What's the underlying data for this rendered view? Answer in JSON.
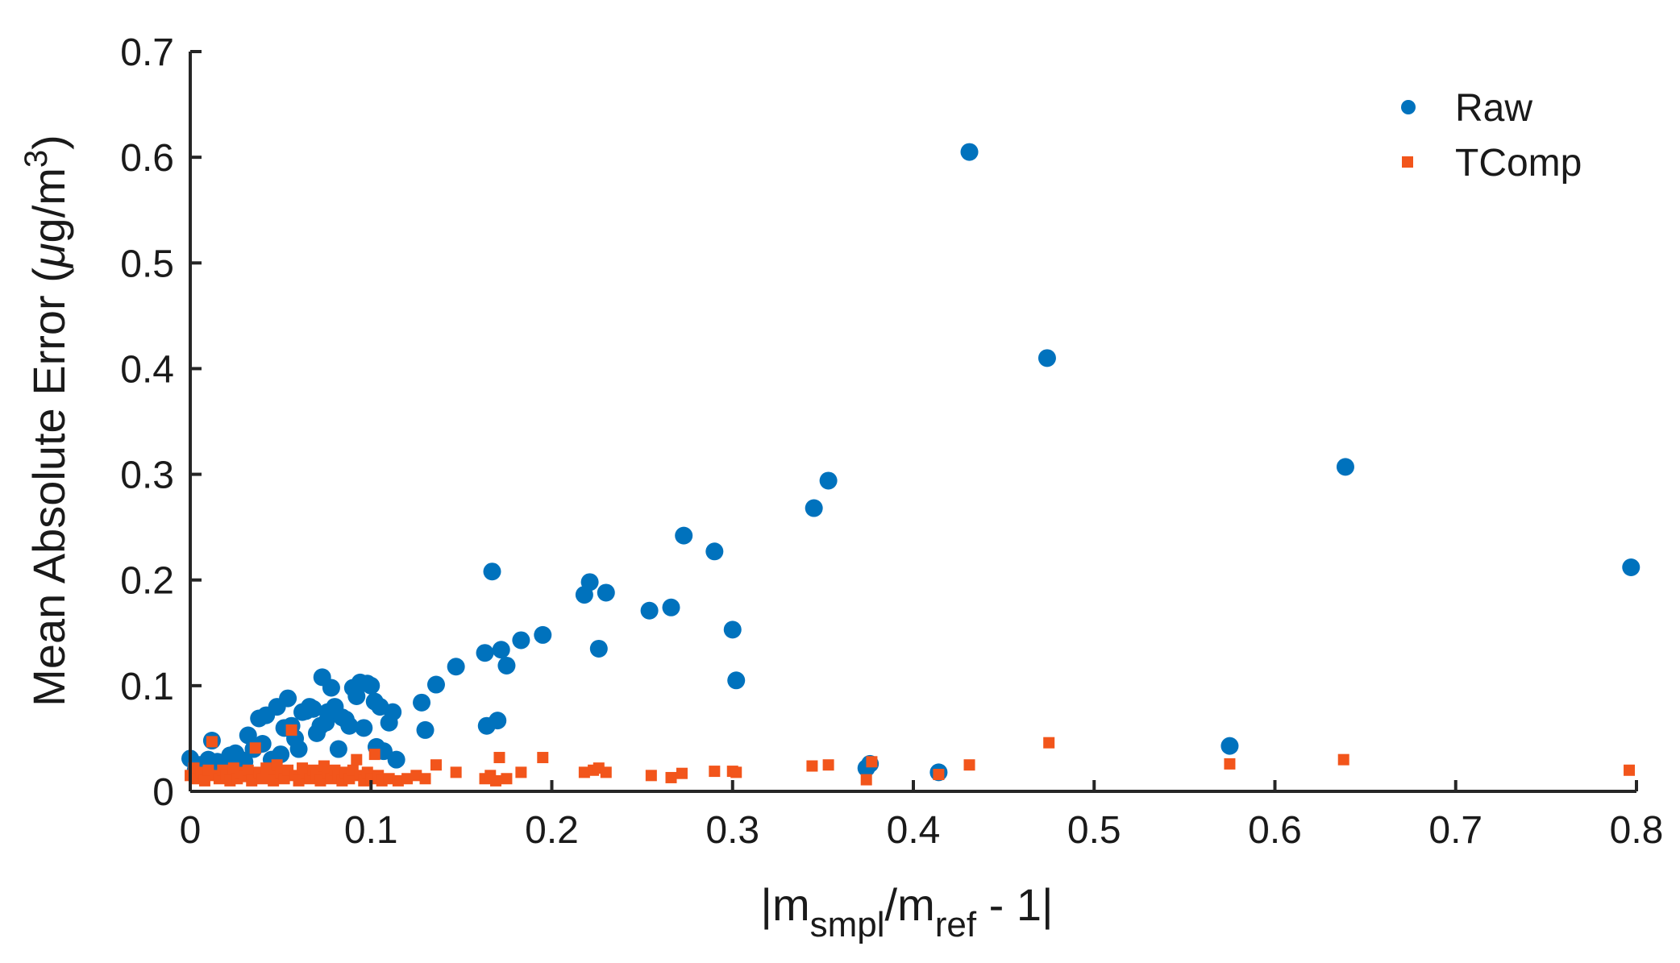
{
  "chart_data": {
    "type": "scatter",
    "xlabel": {
      "pre": "|m",
      "sub1": "smpl",
      "mid": "/m",
      "sub2": "ref",
      "post": " - 1|"
    },
    "ylabel": {
      "pre": "Mean Absolute Error (",
      "mu": "μ",
      "mid": "g/m",
      "sup": "3",
      "post": ")"
    },
    "xlim": [
      0,
      0.8
    ],
    "ylim": [
      0,
      0.7
    ],
    "xticks": [
      "0",
      "0.1",
      "0.2",
      "0.3",
      "0.4",
      "0.5",
      "0.6",
      "0.7",
      "0.8"
    ],
    "yticks": [
      "0",
      "0.1",
      "0.2",
      "0.3",
      "0.4",
      "0.5",
      "0.6",
      "0.7"
    ],
    "grid": false,
    "legend_position": "top-right",
    "series": [
      {
        "name": "Raw",
        "marker": "circle",
        "color": "#0072BD",
        "points": [
          [
            0.0,
            0.031
          ],
          [
            0.003,
            0.02
          ],
          [
            0.005,
            0.025
          ],
          [
            0.008,
            0.018
          ],
          [
            0.01,
            0.03
          ],
          [
            0.012,
            0.048
          ],
          [
            0.015,
            0.028
          ],
          [
            0.018,
            0.026
          ],
          [
            0.02,
            0.022
          ],
          [
            0.022,
            0.034
          ],
          [
            0.025,
            0.036
          ],
          [
            0.028,
            0.03
          ],
          [
            0.03,
            0.028
          ],
          [
            0.032,
            0.053
          ],
          [
            0.035,
            0.04
          ],
          [
            0.038,
            0.069
          ],
          [
            0.04,
            0.045
          ],
          [
            0.042,
            0.072
          ],
          [
            0.045,
            0.03
          ],
          [
            0.048,
            0.08
          ],
          [
            0.05,
            0.035
          ],
          [
            0.052,
            0.06
          ],
          [
            0.054,
            0.088
          ],
          [
            0.056,
            0.062
          ],
          [
            0.058,
            0.05
          ],
          [
            0.06,
            0.04
          ],
          [
            0.062,
            0.075
          ],
          [
            0.064,
            0.076
          ],
          [
            0.066,
            0.08
          ],
          [
            0.068,
            0.078
          ],
          [
            0.07,
            0.055
          ],
          [
            0.072,
            0.062
          ],
          [
            0.073,
            0.108
          ],
          [
            0.075,
            0.065
          ],
          [
            0.076,
            0.075
          ],
          [
            0.078,
            0.098
          ],
          [
            0.08,
            0.08
          ],
          [
            0.082,
            0.04
          ],
          [
            0.084,
            0.07
          ],
          [
            0.086,
            0.068
          ],
          [
            0.088,
            0.062
          ],
          [
            0.09,
            0.098
          ],
          [
            0.092,
            0.09
          ],
          [
            0.094,
            0.103
          ],
          [
            0.096,
            0.06
          ],
          [
            0.098,
            0.102
          ],
          [
            0.1,
            0.1
          ],
          [
            0.102,
            0.085
          ],
          [
            0.103,
            0.042
          ],
          [
            0.105,
            0.08
          ],
          [
            0.107,
            0.038
          ],
          [
            0.11,
            0.065
          ],
          [
            0.112,
            0.075
          ],
          [
            0.114,
            0.03
          ],
          [
            0.128,
            0.084
          ],
          [
            0.13,
            0.058
          ],
          [
            0.136,
            0.101
          ],
          [
            0.147,
            0.118
          ],
          [
            0.163,
            0.131
          ],
          [
            0.164,
            0.062
          ],
          [
            0.167,
            0.208
          ],
          [
            0.17,
            0.067
          ],
          [
            0.172,
            0.134
          ],
          [
            0.175,
            0.119
          ],
          [
            0.183,
            0.143
          ],
          [
            0.195,
            0.148
          ],
          [
            0.218,
            0.186
          ],
          [
            0.221,
            0.198
          ],
          [
            0.226,
            0.135
          ],
          [
            0.23,
            0.188
          ],
          [
            0.254,
            0.171
          ],
          [
            0.266,
            0.174
          ],
          [
            0.273,
            0.242
          ],
          [
            0.29,
            0.227
          ],
          [
            0.3,
            0.153
          ],
          [
            0.302,
            0.105
          ],
          [
            0.345,
            0.268
          ],
          [
            0.353,
            0.294
          ],
          [
            0.374,
            0.022
          ],
          [
            0.376,
            0.026
          ],
          [
            0.414,
            0.018
          ],
          [
            0.431,
            0.605
          ],
          [
            0.474,
            0.41
          ],
          [
            0.575,
            0.043
          ],
          [
            0.639,
            0.307
          ],
          [
            0.797,
            0.212
          ]
        ]
      },
      {
        "name": "TComp",
        "marker": "square",
        "color": "#F2551B",
        "points": [
          [
            0.0,
            0.015
          ],
          [
            0.002,
            0.022
          ],
          [
            0.004,
            0.012
          ],
          [
            0.006,
            0.018
          ],
          [
            0.008,
            0.01
          ],
          [
            0.01,
            0.02
          ],
          [
            0.012,
            0.047
          ],
          [
            0.014,
            0.015
          ],
          [
            0.016,
            0.012
          ],
          [
            0.018,
            0.02
          ],
          [
            0.02,
            0.016
          ],
          [
            0.022,
            0.01
          ],
          [
            0.024,
            0.022
          ],
          [
            0.026,
            0.012
          ],
          [
            0.028,
            0.018
          ],
          [
            0.03,
            0.014
          ],
          [
            0.032,
            0.02
          ],
          [
            0.034,
            0.01
          ],
          [
            0.036,
            0.041
          ],
          [
            0.038,
            0.018
          ],
          [
            0.04,
            0.012
          ],
          [
            0.042,
            0.022
          ],
          [
            0.044,
            0.015
          ],
          [
            0.046,
            0.01
          ],
          [
            0.048,
            0.025
          ],
          [
            0.05,
            0.018
          ],
          [
            0.052,
            0.012
          ],
          [
            0.054,
            0.02
          ],
          [
            0.056,
            0.058
          ],
          [
            0.058,
            0.015
          ],
          [
            0.06,
            0.01
          ],
          [
            0.062,
            0.022
          ],
          [
            0.064,
            0.018
          ],
          [
            0.066,
            0.012
          ],
          [
            0.068,
            0.02
          ],
          [
            0.07,
            0.015
          ],
          [
            0.072,
            0.01
          ],
          [
            0.074,
            0.024
          ],
          [
            0.076,
            0.018
          ],
          [
            0.078,
            0.012
          ],
          [
            0.08,
            0.02
          ],
          [
            0.082,
            0.015
          ],
          [
            0.084,
            0.01
          ],
          [
            0.086,
            0.018
          ],
          [
            0.088,
            0.012
          ],
          [
            0.09,
            0.02
          ],
          [
            0.092,
            0.03
          ],
          [
            0.094,
            0.015
          ],
          [
            0.096,
            0.01
          ],
          [
            0.098,
            0.018
          ],
          [
            0.1,
            0.012
          ],
          [
            0.102,
            0.035
          ],
          [
            0.104,
            0.015
          ],
          [
            0.106,
            0.01
          ],
          [
            0.11,
            0.012
          ],
          [
            0.115,
            0.01
          ],
          [
            0.12,
            0.012
          ],
          [
            0.125,
            0.015
          ],
          [
            0.13,
            0.012
          ],
          [
            0.136,
            0.025
          ],
          [
            0.147,
            0.018
          ],
          [
            0.163,
            0.012
          ],
          [
            0.166,
            0.015
          ],
          [
            0.169,
            0.01
          ],
          [
            0.171,
            0.032
          ],
          [
            0.175,
            0.012
          ],
          [
            0.183,
            0.018
          ],
          [
            0.195,
            0.032
          ],
          [
            0.218,
            0.018
          ],
          [
            0.223,
            0.02
          ],
          [
            0.226,
            0.022
          ],
          [
            0.23,
            0.018
          ],
          [
            0.255,
            0.015
          ],
          [
            0.266,
            0.013
          ],
          [
            0.272,
            0.017
          ],
          [
            0.29,
            0.019
          ],
          [
            0.3,
            0.019
          ],
          [
            0.302,
            0.018
          ],
          [
            0.344,
            0.024
          ],
          [
            0.353,
            0.025
          ],
          [
            0.374,
            0.011
          ],
          [
            0.377,
            0.028
          ],
          [
            0.414,
            0.016
          ],
          [
            0.431,
            0.025
          ],
          [
            0.475,
            0.046
          ],
          [
            0.575,
            0.026
          ],
          [
            0.638,
            0.03
          ],
          [
            0.796,
            0.02
          ]
        ]
      }
    ]
  }
}
